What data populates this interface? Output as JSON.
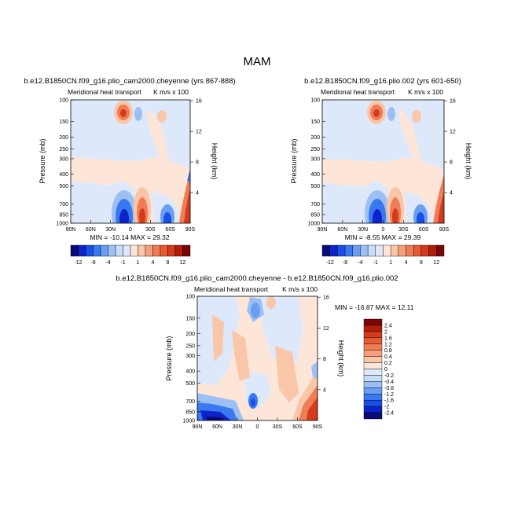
{
  "figure": {
    "title": "MAM"
  },
  "colors": {
    "top_levels": [
      -12,
      -8,
      -4,
      -1,
      1,
      4,
      8,
      12
    ],
    "diff_levels": [
      -2.4,
      -2,
      -1.6,
      -1.2,
      -0.8,
      -0.4,
      -0.2,
      0,
      0.2,
      0.4,
      0.8,
      1.2,
      1.6,
      2,
      2.4
    ],
    "negative_ramp": [
      "#0a0a7a",
      "#0c23c8",
      "#1a4ee8",
      "#3a78f0",
      "#6a9ef2",
      "#9cc0f4",
      "#c6dcf8",
      "#dde9fb"
    ],
    "positive_ramp": [
      "#fde6d8",
      "#fac6a8",
      "#f5a07c",
      "#ef7c56",
      "#e65a34",
      "#d43a1c",
      "#b21c0a",
      "#7a0606"
    ],
    "neutral": "#f4f4f4"
  },
  "chart_data": [
    {
      "type": "heatmap",
      "title": "b.e12.B1850CN.f09_g16.plio_cam2000.cheyenne (yrs 867-888)",
      "subtitle": "Meridional heat transport",
      "units_label": "K m/s x 100",
      "xlabel": "",
      "ylabel": "Pressure (mb)",
      "y2label": "Height (km)",
      "x_ticks": [
        "90N",
        "60N",
        "30N",
        "0",
        "30S",
        "60S",
        "90S"
      ],
      "y_ticks": [
        "100",
        "150",
        "200",
        "250",
        "300",
        "400",
        "500",
        "700",
        "850",
        "1000"
      ],
      "y2_ticks": [
        "16",
        "12",
        "8",
        "4"
      ],
      "stats": "MIN = -10.14   MAX =  29.32",
      "colorbar_labels": [
        "-12",
        "-8",
        "-4",
        "-1",
        "1",
        "4",
        "8",
        "12"
      ]
    },
    {
      "type": "heatmap",
      "title": "b.e12.B1850CN.f09_g16.plio.002 (yrs 601-650)",
      "subtitle": "Meridional heat transport",
      "units_label": "K m/s x 100",
      "xlabel": "",
      "ylabel": "Pressure (mb)",
      "y2label": "Height (km)",
      "x_ticks": [
        "90N",
        "60N",
        "30N",
        "0",
        "30S",
        "60S",
        "90S"
      ],
      "y_ticks": [
        "100",
        "150",
        "200",
        "250",
        "300",
        "400",
        "500",
        "700",
        "850",
        "1000"
      ],
      "y2_ticks": [
        "16",
        "12",
        "8",
        "4"
      ],
      "stats": "MIN = -8.55   MAX =  29.39",
      "colorbar_labels": [
        "-12",
        "-8",
        "-4",
        "-1",
        "1",
        "4",
        "8",
        "12"
      ]
    },
    {
      "type": "heatmap",
      "title": "b.e12.B1850CN.f09_g16.plio_cam2000.cheyenne - b.e12.B1850CN.f09_g16.plio.002",
      "subtitle": "Meridional heat transport",
      "units_label": "K m/s x 100",
      "xlabel": "",
      "ylabel": "Pressure (mb)",
      "y2label": "Height (km)",
      "x_ticks": [
        "90N",
        "60N",
        "30N",
        "0",
        "30S",
        "60S",
        "90S"
      ],
      "y_ticks": [
        "100",
        "150",
        "200",
        "250",
        "300",
        "400",
        "500",
        "700",
        "850",
        "1000"
      ],
      "y2_ticks": [
        "16",
        "12",
        "8",
        "4"
      ],
      "stats": "MIN = -16.87   MAX =  12.11",
      "colorbar_labels": [
        "2.4",
        "2",
        "1.6",
        "1.2",
        "0.8",
        "0.4",
        "0.2",
        "0",
        "-0.2",
        "-0.4",
        "-0.8",
        "-1.2",
        "-1.6",
        "-2",
        "-2.4"
      ]
    }
  ]
}
